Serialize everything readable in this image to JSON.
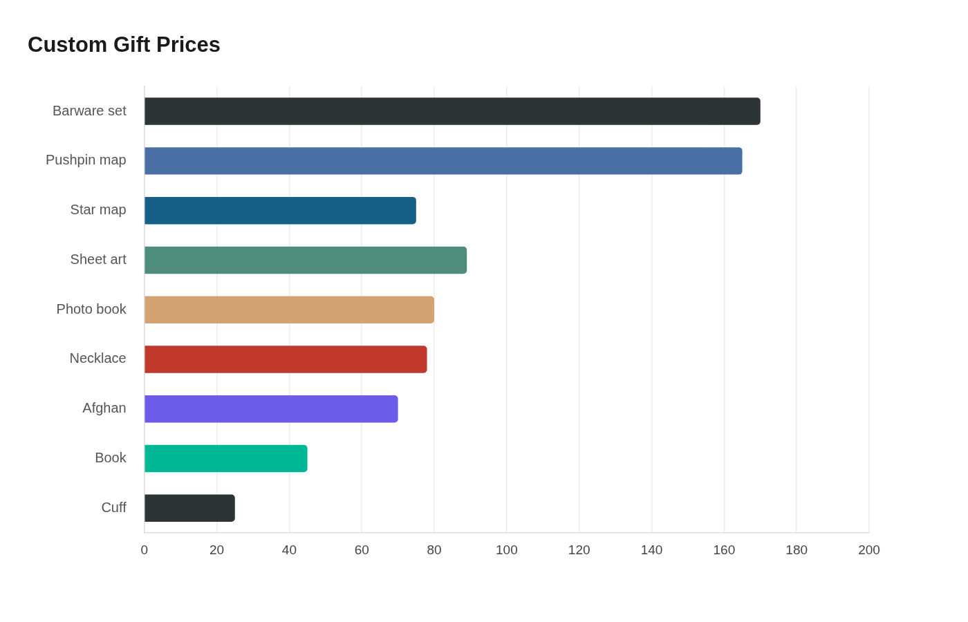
{
  "chart_data": {
    "type": "bar",
    "orientation": "horizontal",
    "title": "Custom Gift Prices",
    "categories": [
      "Barware set",
      "Pushpin map",
      "Star map",
      "Sheet art",
      "Photo book",
      "Necklace",
      "Afghan",
      "Book",
      "Cuff"
    ],
    "values": [
      170,
      165,
      75,
      89,
      80,
      78,
      70,
      45,
      25
    ],
    "colors": [
      "#2d3436",
      "#4a6fa5",
      "#166088",
      "#4e8d7c",
      "#d4a373",
      "#c0392b",
      "#6c5ce7",
      "#00b894",
      "#2d3436"
    ],
    "xlim": [
      0,
      200
    ],
    "xticks": [
      0,
      20,
      40,
      60,
      80,
      100,
      120,
      140,
      160,
      180,
      200
    ],
    "grid": "x",
    "legend": false
  }
}
